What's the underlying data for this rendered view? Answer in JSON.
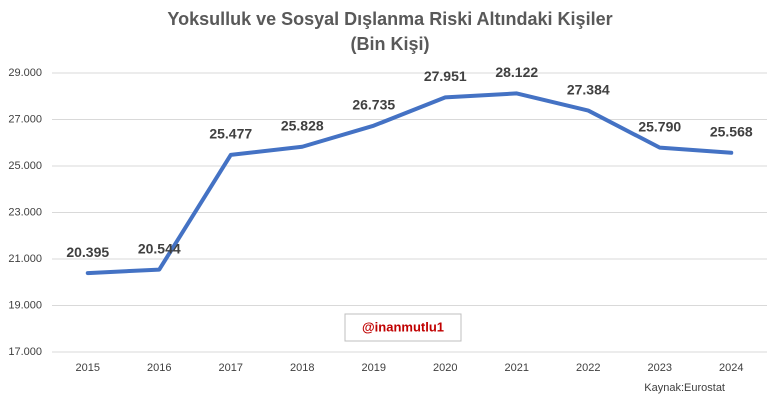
{
  "chart_data": {
    "type": "line",
    "title": "Yoksulluk ve Sosyal Dışlanma Riski Altındaki Kişiler",
    "subtitle": "(Bin Kişi)",
    "categories": [
      "2015",
      "2016",
      "2017",
      "2018",
      "2019",
      "2020",
      "2021",
      "2022",
      "2023",
      "2024"
    ],
    "values": [
      20395,
      20544,
      25477,
      25828,
      26735,
      27951,
      28122,
      27384,
      25790,
      25568
    ],
    "value_labels": [
      "20.395",
      "20.544",
      "25.477",
      "25.828",
      "26.735",
      "27.951",
      "28.122",
      "27.384",
      "25.790",
      "25.568"
    ],
    "color": "#4472c4",
    "ylim": [
      17000,
      29000
    ],
    "yticks": [
      {
        "value": 17000,
        "label": "17.000"
      },
      {
        "value": 19000,
        "label": "19.000"
      },
      {
        "value": 21000,
        "label": "21.000"
      },
      {
        "value": 23000,
        "label": "23.000"
      },
      {
        "value": 25000,
        "label": "25.000"
      },
      {
        "value": 27000,
        "label": "27.000"
      },
      {
        "value": 29000,
        "label": "29.000"
      }
    ],
    "grid": true,
    "annotations": [
      "@inanmutlu1",
      "Kaynak:Eurostat"
    ]
  }
}
